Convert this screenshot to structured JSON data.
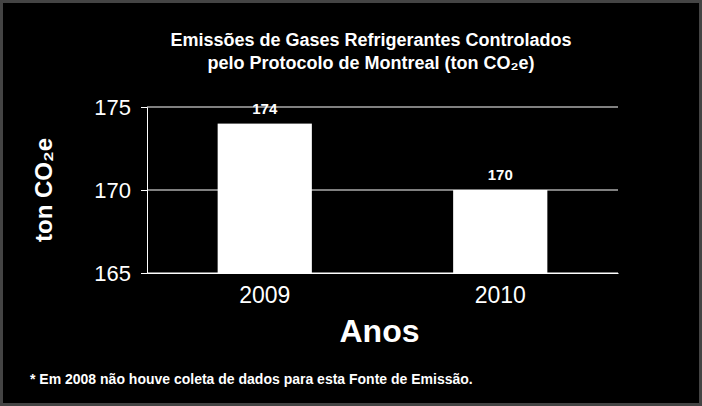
{
  "chart_data": {
    "type": "bar",
    "title": [
      "Emissões de Gases Refrigerantes Controlados",
      "pelo Protocolo de Montreal (ton CO₂e)"
    ],
    "x_label": "Anos",
    "y_label": "ton CO₂e",
    "annotations": [
      "* Em 2008 não houve coleta de dados para esta Fonte de Emissão."
    ],
    "categories": [
      "2009",
      "2010"
    ],
    "values": [
      174,
      170
    ],
    "color": "#ffffff",
    "ylim": [
      165,
      175
    ],
    "yticks": [
      165,
      170,
      175
    ],
    "grid": true,
    "data_labels": true
  }
}
